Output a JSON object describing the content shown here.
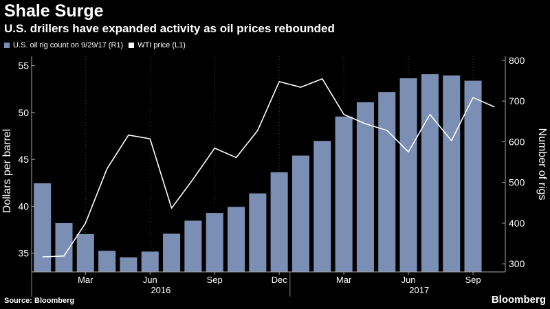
{
  "title": "Shale Surge",
  "subtitle": "U.S. drillers have expanded activity as oil prices rebounded",
  "source": "Source: Bloomberg",
  "brand": "Bloomberg",
  "colors": {
    "background": "#000000",
    "bar": "#7b8eb3",
    "line": "#ffffff",
    "grid": "#444444",
    "text": "#ffffff"
  },
  "chart_data": {
    "type": "bar",
    "categories": [
      "Jan 2016",
      "Feb 2016",
      "Mar 2016",
      "Apr 2016",
      "May 2016",
      "Jun 2016",
      "Jul 2016",
      "Aug 2016",
      "Sep 2016",
      "Oct 2016",
      "Nov 2016",
      "Dec 2016",
      "Jan 2017",
      "Feb 2017",
      "Mar 2017",
      "Apr 2017",
      "May 2017",
      "Jun 2017",
      "Jul 2017",
      "Aug 2017",
      "Sep 2017",
      "Oct 2017"
    ],
    "bar_series": {
      "name": "U.S. oil rig count on 9/29/17 (R1)",
      "axis": "right",
      "values": [
        498,
        400,
        373,
        332,
        316,
        330,
        374,
        406,
        425,
        440,
        473,
        525,
        566,
        602,
        662,
        697,
        722,
        756,
        766,
        763,
        750,
        null
      ]
    },
    "line_series": {
      "name": "WTI price (L1)",
      "axis": "left",
      "values": [
        34.6,
        34.7,
        38.2,
        44.0,
        47.6,
        47.2,
        39.8,
        42.9,
        46.2,
        45.2,
        48.1,
        53.3,
        52.7,
        53.6,
        49.8,
        48.8,
        48.1,
        45.8,
        49.8,
        47.0,
        51.6,
        50.6
      ]
    },
    "x_tick_labels": [
      "Mar",
      "Jun",
      "Sep",
      "Dec",
      "Mar",
      "Jun",
      "Sep"
    ],
    "x_tick_indices": [
      2,
      5,
      8,
      11,
      14,
      17,
      20
    ],
    "x_year_labels": [
      "2016",
      "2017"
    ],
    "ylabel_left": "Dollars per barrel",
    "ylabel_right": "Number of rigs",
    "ylim_left": [
      33,
      56
    ],
    "ylim_right": [
      280,
      810
    ],
    "yticks_left": [
      "35",
      "40",
      "45",
      "50",
      "55"
    ],
    "yticks_right": [
      "300",
      "400",
      "500",
      "600",
      "700",
      "800"
    ],
    "grid": "vertical dotted",
    "legend_position": "top-left"
  }
}
